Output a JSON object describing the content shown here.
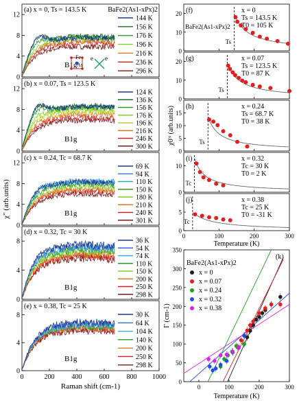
{
  "chart_data": [
    {
      "id": "a",
      "type": "line",
      "panel_label": "(a)",
      "title": "x = 0, Ts = 143.5 K",
      "compound": "BaFe2(As1-xPx)2",
      "sym": "B1g",
      "xlim": [
        0,
        1000
      ],
      "ylim": [
        0,
        14
      ],
      "yticks": [
        0,
        4,
        8,
        12
      ],
      "series": [
        {
          "name": "144 K",
          "color": "#1a3a8a",
          "plateau": 7.6,
          "peak": 2.2
        },
        {
          "name": "156 K",
          "color": "#1d6b2a",
          "plateau": 7.9,
          "peak": 2.0
        },
        {
          "name": "176 K",
          "color": "#2e9b2e",
          "plateau": 7.8,
          "peak": 1.2
        },
        {
          "name": "196 K",
          "color": "#7fd12a",
          "plateau": 7.4,
          "peak": 0.6
        },
        {
          "name": "216 K",
          "color": "#e07a1a",
          "plateau": 7.0,
          "peak": 0.3
        },
        {
          "name": "236 K",
          "color": "#d02020",
          "plateau": 6.6,
          "peak": 0.2
        },
        {
          "name": "296 K",
          "color": "#7a1a1a",
          "plateau": 5.9,
          "peak": 0.0
        }
      ]
    },
    {
      "id": "b",
      "type": "line",
      "panel_label": "(b)",
      "title": "x = 0.07, Ts = 123.5 K",
      "sym": "B1g",
      "xlim": [
        0,
        1000
      ],
      "ylim": [
        0,
        14
      ],
      "yticks": [
        0,
        4,
        8,
        12
      ],
      "series": [
        {
          "name": "124 K",
          "color": "#1a3a8a",
          "plateau": 8.6,
          "peak": 2.6
        },
        {
          "name": "136 K",
          "color": "#1d6b2a",
          "plateau": 8.8,
          "peak": 2.4
        },
        {
          "name": "156 K",
          "color": "#2e9b2e",
          "plateau": 8.6,
          "peak": 1.8
        },
        {
          "name": "176 K",
          "color": "#7fd12a",
          "plateau": 8.2,
          "peak": 1.0
        },
        {
          "name": "196 K",
          "color": "#bcd12a",
          "plateau": 7.7,
          "peak": 0.6
        },
        {
          "name": "216 K",
          "color": "#e07a1a",
          "plateau": 7.2,
          "peak": 0.3
        },
        {
          "name": "246 K",
          "color": "#d02020",
          "plateau": 6.6,
          "peak": 0.1
        },
        {
          "name": "300 K",
          "color": "#7a1a1a",
          "plateau": 6.0,
          "peak": 0.0
        }
      ]
    },
    {
      "id": "c",
      "type": "line",
      "panel_label": "(c)",
      "title": "x = 0.24, Tc = 68.7 K",
      "sym": "B1g",
      "xlim": [
        0,
        1000
      ],
      "ylim": [
        0,
        14
      ],
      "yticks": [
        0,
        4,
        8,
        12
      ],
      "series": [
        {
          "name": "69 K",
          "color": "#1a3a8a",
          "plateau": 8.4,
          "peak": 0.8
        },
        {
          "name": "94 K",
          "color": "#3a8ad8",
          "plateau": 8.6,
          "peak": 0.7
        },
        {
          "name": "110 K",
          "color": "#2aa8a8",
          "plateau": 8.4,
          "peak": 0.5
        },
        {
          "name": "150 K",
          "color": "#2e9b2e",
          "plateau": 8.0,
          "peak": 0.3
        },
        {
          "name": "180 K",
          "color": "#7fd12a",
          "plateau": 7.5,
          "peak": 0.2
        },
        {
          "name": "210 K",
          "color": "#e07a1a",
          "plateau": 7.0,
          "peak": 0.1
        },
        {
          "name": "240 K",
          "color": "#d02020",
          "plateau": 6.6,
          "peak": 0.0
        },
        {
          "name": "301 K",
          "color": "#7a1a1a",
          "plateau": 6.1,
          "peak": 0.0
        }
      ]
    },
    {
      "id": "d",
      "type": "line",
      "panel_label": "(d)",
      "title": "x = 0.32, Tc = 30 K",
      "sym": "B1g",
      "xlim": [
        0,
        1000
      ],
      "ylim": [
        0,
        10
      ],
      "yticks": [
        0,
        4,
        8
      ],
      "series": [
        {
          "name": "36 K",
          "color": "#1a3a8a",
          "plateau": 7.6,
          "peak": 0.6
        },
        {
          "name": "54 K",
          "color": "#3a6ad8",
          "plateau": 7.4,
          "peak": 0.5
        },
        {
          "name": "74 K",
          "color": "#3aa8e8",
          "plateau": 7.2,
          "peak": 0.4
        },
        {
          "name": "110 K",
          "color": "#2e9b2e",
          "plateau": 6.9,
          "peak": 0.3
        },
        {
          "name": "150 K",
          "color": "#7fd12a",
          "plateau": 6.6,
          "peak": 0.2
        },
        {
          "name": "200 K",
          "color": "#e07a1a",
          "plateau": 6.3,
          "peak": 0.1
        },
        {
          "name": "250 K",
          "color": "#d02020",
          "plateau": 6.0,
          "peak": 0.0
        },
        {
          "name": "298 K",
          "color": "#7a1a1a",
          "plateau": 5.7,
          "peak": 0.0
        }
      ]
    },
    {
      "id": "e",
      "type": "line",
      "panel_label": "(e)",
      "title": "x = 0.38, Tc = 25 K",
      "sym": "B1g",
      "xlabel": "Raman shift (cm-1)",
      "xlim": [
        0,
        1000
      ],
      "ylim": [
        0,
        10
      ],
      "yticks": [
        0,
        4,
        8
      ],
      "xticks": [
        0,
        200,
        400,
        600,
        800,
        1000
      ],
      "series": [
        {
          "name": "30 K",
          "color": "#1a3a8a",
          "plateau": 7.0,
          "peak": 0.0
        },
        {
          "name": "64 K",
          "color": "#3a6ad8",
          "plateau": 6.8,
          "peak": 0.0
        },
        {
          "name": "104 K",
          "color": "#3aa8e8",
          "plateau": 6.6,
          "peak": 0.0
        },
        {
          "name": "140 K",
          "color": "#2e9b2e",
          "plateau": 6.4,
          "peak": 0.0
        },
        {
          "name": "200 K",
          "color": "#e07a1a",
          "plateau": 6.2,
          "peak": 0.0
        },
        {
          "name": "250 K",
          "color": "#d02020",
          "plateau": 6.0,
          "peak": 0.0
        },
        {
          "name": "298 K",
          "color": "#7a1a1a",
          "plateau": 5.8,
          "peak": 0.0
        }
      ]
    },
    {
      "id": "f",
      "type": "scatter",
      "panel_label": "(f)",
      "compound": "BaFe2(As1-xPx)2",
      "params": [
        "x = 0",
        "Ts = 143.5 K",
        "T0 = 105 K"
      ],
      "mark_label": "Ts",
      "mark_x": 143.5,
      "T0": 105,
      "xlim": [
        0,
        300
      ],
      "ylim": [
        0,
        25
      ],
      "yticks": [
        0,
        10,
        20
      ],
      "x": [
        147,
        152,
        162,
        176,
        196,
        216,
        236,
        266,
        296
      ],
      "y": [
        18.0,
        15.6,
        13.6,
        11.6,
        9.6,
        7.6,
        6.5,
        5.2,
        3.8
      ]
    },
    {
      "id": "g",
      "type": "scatter",
      "panel_label": "(g)",
      "params": [
        "x = 0.07",
        "Ts = 123.5 K",
        "T0 = 87 K"
      ],
      "mark_label": "Ts",
      "mark_x": 123.5,
      "T0": 87,
      "xlim": [
        0,
        300
      ],
      "ylim": [
        0,
        25
      ],
      "yticks": [
        0,
        10,
        20
      ],
      "x": [
        126,
        131,
        139,
        146,
        156,
        166,
        176,
        196,
        216,
        246,
        300
      ],
      "y": [
        17.8,
        16.0,
        14.2,
        12.7,
        11.2,
        9.8,
        8.9,
        7.5,
        6.6,
        5.8,
        4.2
      ]
    },
    {
      "id": "h",
      "type": "scatter",
      "panel_label": "(h)",
      "params": [
        "x = 0.24",
        "Ts = 68.7 K",
        "T0 = 38 K"
      ],
      "mark_label": "Ts",
      "mark_x": 68.7,
      "T0": 38,
      "ylabel": "χ0ᴺ (arb.units)",
      "xlim": [
        0,
        300
      ],
      "ylim": [
        0,
        20
      ],
      "yticks": [
        0,
        5,
        10,
        15
      ],
      "x": [
        72,
        84,
        96,
        112,
        132,
        152,
        180
      ],
      "y": [
        12.4,
        11.6,
        10.2,
        7.8,
        6.2,
        3.6,
        1.8
      ]
    },
    {
      "id": "i",
      "type": "scatter",
      "panel_label": "(i)",
      "params": [
        "x = 0.32",
        "Tc = 30 K",
        "T0 = 2 K"
      ],
      "mark_label": "Tc",
      "mark_x": 30,
      "T0": 2,
      "xlim": [
        0,
        300
      ],
      "ylim": [
        0,
        15
      ],
      "yticks": [
        0,
        10
      ],
      "x": [
        36,
        46,
        56,
        72,
        92,
        112
      ],
      "y": [
        10.8,
        7.6,
        5.6,
        4.6,
        3.2,
        2.6
      ]
    },
    {
      "id": "j",
      "type": "scatter",
      "panel_label": "(j)",
      "params": [
        "x = 0.38",
        "Tc = 25 K",
        "T0 = -31 K"
      ],
      "mark_label": "Tc",
      "mark_x": 25,
      "T0": -31,
      "xlabel": "Temperature (K)",
      "xlim": [
        0,
        300
      ],
      "ylim": [
        0,
        10
      ],
      "yticks": [
        0,
        5
      ],
      "xticks": [
        0,
        100,
        200,
        300
      ],
      "x": [
        32,
        52,
        72,
        92,
        112,
        132
      ],
      "y": [
        4.4,
        4.0,
        3.6,
        3.4,
        3.0,
        2.8
      ]
    },
    {
      "id": "k",
      "type": "scatter",
      "panel_label": "(k)",
      "compound": "BaFe2(As1-xPx)2",
      "xlabel": "Temperature (K)",
      "ylabel": "Γ (cm-1)",
      "xlim": [
        -50,
        300
      ],
      "ylim": [
        0,
        350
      ],
      "xticks": [
        0,
        100,
        200,
        300
      ],
      "yticks": [
        0,
        50,
        100,
        150,
        200,
        250,
        300,
        350
      ],
      "legend_position": "top-left",
      "series": [
        {
          "name": "x = 0",
          "color": "#222222",
          "x": [
            150,
            160,
            170,
            180,
            190,
            200,
            210,
            220,
            240,
            270
          ],
          "y": [
            100,
            118,
            135,
            150,
            165,
            172,
            182,
            190,
            205,
            225
          ],
          "line": [
            [
              95,
              0
            ],
            [
              280,
              330
            ]
          ]
        },
        {
          "name": "x = 0.07",
          "color": "#e02020",
          "x": [
            128,
            140,
            150,
            160,
            170,
            180,
            200,
            220,
            240,
            270
          ],
          "y": [
            92,
            110,
            122,
            136,
            150,
            160,
            182,
            195,
            205,
            205
          ],
          "line": [
            [
              80,
              0
            ],
            [
              280,
              325
            ]
          ]
        },
        {
          "name": "x = 0.24",
          "color": "#20a020",
          "x": [
            72,
            84,
            96,
            110,
            124,
            150
          ],
          "y": [
            40,
            60,
            70,
            80,
            95,
            100
          ],
          "line": [
            [
              30,
              0
            ],
            [
              240,
              350
            ]
          ]
        },
        {
          "name": "x = 0.32",
          "color": "#2050e0",
          "x": [
            36,
            46,
            56,
            72,
            92,
            112,
            132,
            150
          ],
          "y": [
            40,
            30,
            35,
            45,
            55,
            78,
            90,
            122
          ],
          "line": [
            [
              -30,
              0
            ],
            [
              300,
              235
            ]
          ]
        },
        {
          "name": "x = 0.38",
          "color": "#e020e0",
          "x": [
            32,
            52,
            72,
            92,
            112,
            132
          ],
          "y": [
            60,
            55,
            70,
            72,
            80,
            92
          ],
          "line": [
            [
              -50,
              22
            ],
            [
              300,
              205
            ]
          ]
        }
      ]
    }
  ],
  "shared": {
    "left_ylabel": "χ\" (arb.units)",
    "inset_fe": "Fe",
    "inset_as": "As",
    "inset_e1": "e",
    "inset_e2": "e",
    "inset_colors": {
      "square": "#c02020",
      "fe": "#c02020",
      "as": "#2050c0",
      "arrows": "#20a060"
    }
  }
}
